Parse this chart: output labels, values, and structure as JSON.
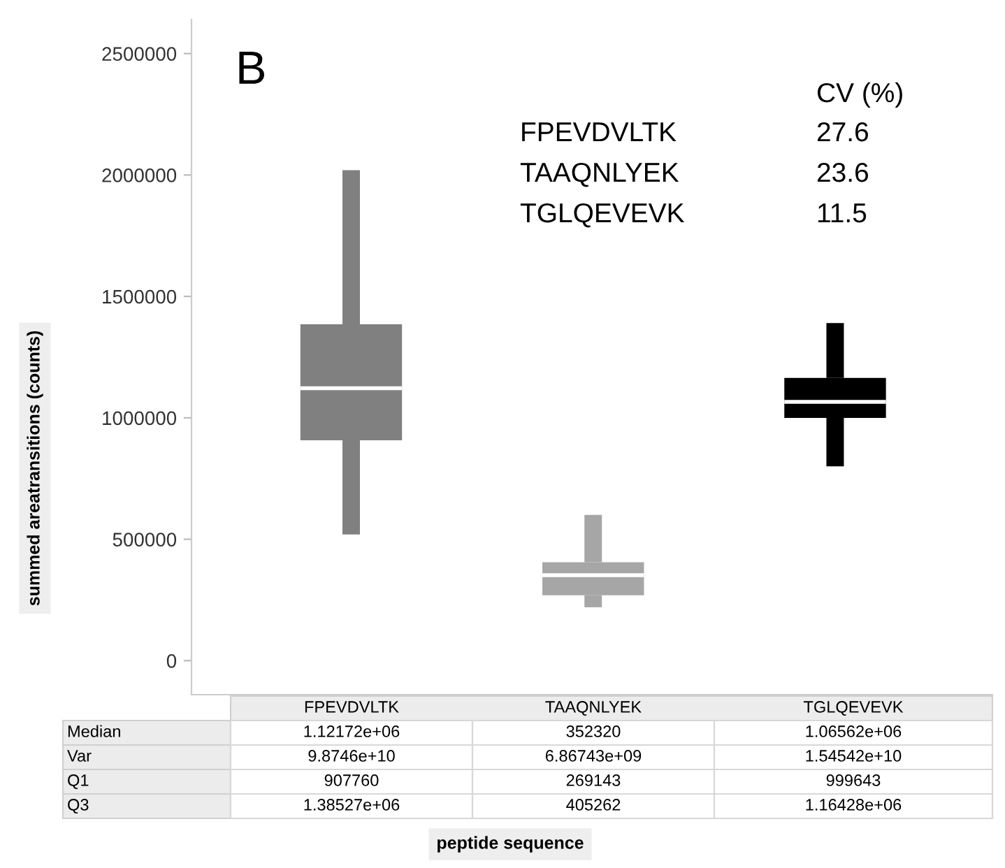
{
  "chart_data": {
    "type": "box",
    "title": "B",
    "ylabel": "summed areatransitions (counts)",
    "categories": [
      "FPEVDVLTK",
      "TAAQNLYEK",
      "TGLQEVEVK"
    ],
    "colors": [
      "#808080",
      "#a6a6a6",
      "#000000"
    ],
    "boxes": [
      {
        "low": 520000,
        "q1": 907760,
        "median": 1121720,
        "q3": 1385270,
        "high": 2020000
      },
      {
        "low": 220000,
        "q1": 269143,
        "median": 352320,
        "q3": 405262,
        "high": 600000
      },
      {
        "low": 800000,
        "q1": 999643,
        "median": 1065620,
        "q3": 1164280,
        "high": 1390000
      }
    ],
    "ylim": [
      -140000,
      2640000
    ],
    "yticks": [
      0,
      500000,
      1000000,
      1500000,
      2000000,
      2500000
    ],
    "tick_labels": "y",
    "grid": false,
    "legend": false,
    "annotations": [
      "CV (%)",
      "FPEVDVLTK",
      "27.6",
      "TAAQNLYEK",
      "23.6",
      "TGLQEVEVK",
      "11.5",
      "Median",
      "Var",
      "Q1",
      "Q3",
      "1.12172e+06",
      "352320",
      "1.06562e+06",
      "9.8746e+10",
      "6.86743e+09",
      "1.54542e+10",
      "907760",
      "269143",
      "999643",
      "1.38527e+06",
      "405262",
      "1.16428e+06",
      "peptide sequence"
    ]
  }
}
